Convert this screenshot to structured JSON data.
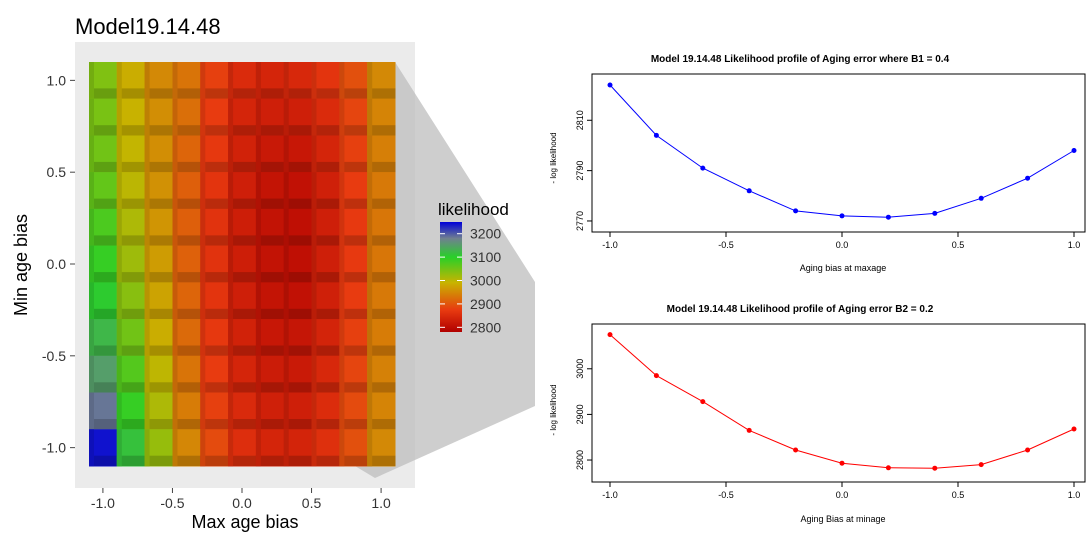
{
  "chart_data": [
    {
      "type": "heatmap",
      "title": "Model19.14.48",
      "xlabel": "Max age bias",
      "ylabel": "Min age bias",
      "x_ticks": [
        "-1.0",
        "-0.5",
        "0.0",
        "0.5",
        "1.0"
      ],
      "y_ticks": [
        "1.0",
        "0.5",
        "0.0",
        "-0.5",
        "-1.0"
      ],
      "x": [
        -1.0,
        -0.8,
        -0.6,
        -0.4,
        -0.2,
        0.0,
        0.2,
        0.4,
        0.6,
        0.8,
        1.0
      ],
      "y": [
        1.0,
        0.8,
        0.6,
        0.4,
        0.2,
        0.0,
        -0.2,
        -0.4,
        -0.6,
        -0.8,
        -1.0
      ],
      "xlim": [
        -1.1,
        1.1
      ],
      "ylim": [
        -1.1,
        1.1
      ],
      "z": [
        [
          3040,
          2985,
          2950,
          2930,
          2880,
          2850,
          2840,
          2845,
          2865,
          2895,
          2950
        ],
        [
          3045,
          2990,
          2955,
          2925,
          2875,
          2840,
          2830,
          2830,
          2850,
          2885,
          2945
        ],
        [
          3050,
          2995,
          2955,
          2915,
          2870,
          2835,
          2820,
          2818,
          2840,
          2880,
          2940
        ],
        [
          3060,
          3000,
          2958,
          2910,
          2865,
          2830,
          2812,
          2808,
          2832,
          2875,
          2935
        ],
        [
          3075,
          3010,
          2962,
          2910,
          2862,
          2828,
          2810,
          2805,
          2830,
          2872,
          2932
        ],
        [
          3090,
          3020,
          2968,
          2912,
          2862,
          2828,
          2810,
          2805,
          2830,
          2872,
          2932
        ],
        [
          3105,
          3035,
          2975,
          2915,
          2865,
          2830,
          2812,
          2808,
          2832,
          2875,
          2935
        ],
        [
          3125,
          3050,
          2985,
          2920,
          2870,
          2835,
          2818,
          2815,
          2838,
          2880,
          2938
        ],
        [
          3150,
          3070,
          2998,
          2930,
          2875,
          2840,
          2825,
          2822,
          2845,
          2885,
          2942
        ],
        [
          3185,
          3090,
          3010,
          2938,
          2880,
          2848,
          2832,
          2830,
          2852,
          2890,
          2945
        ],
        [
          3240,
          3115,
          3025,
          2948,
          2890,
          2855,
          2840,
          2838,
          2858,
          2895,
          2950
        ]
      ],
      "legend": {
        "title": "likelihood",
        "ticks": [
          3200,
          3100,
          3000,
          2900,
          2800
        ],
        "range": [
          2780,
          3250
        ],
        "colors": [
          "#b00000",
          "#e83a10",
          "#c8b400",
          "#28d028",
          "#708090",
          "#0000d8"
        ],
        "placement": "right"
      },
      "grid": true
    },
    {
      "type": "line",
      "title": "Model 19.14.48 Likelihood profile of Aging error where B1 = 0.4",
      "xlabel": "Aging bias at maxage",
      "ylabel": "- log likelihood",
      "x": [
        -1.0,
        -0.8,
        -0.6,
        -0.4,
        -0.2,
        0.0,
        0.2,
        0.4,
        0.6,
        0.8,
        1.0
      ],
      "y": [
        2824,
        2804,
        2791,
        2782,
        2774,
        2772,
        2771.5,
        2773,
        2779,
        2787,
        2798
      ],
      "xlim": [
        -1.0,
        1.0
      ],
      "ylim": [
        2768,
        2826
      ],
      "x_ticks": [
        -1.0,
        -0.5,
        0.0,
        0.5,
        1.0
      ],
      "x_tick_labels": [
        "-1.0",
        "-0.5",
        "0.0",
        "0.5",
        "1.0"
      ],
      "y_ticks": [
        2770,
        2790,
        2810
      ],
      "color": "#0000ff",
      "grid": false
    },
    {
      "type": "line",
      "title": "Model 19.14.48 Likelihood profile of Aging error B2 = 0.2",
      "xlabel": "Aging Bias at minage",
      "ylabel": "- log likelihood",
      "x": [
        -1.0,
        -0.8,
        -0.6,
        -0.4,
        -0.2,
        0.0,
        0.2,
        0.4,
        0.6,
        0.8,
        1.0
      ],
      "y": [
        3075,
        2985,
        2928,
        2865,
        2822,
        2793,
        2783,
        2782,
        2790,
        2822,
        2868
      ],
      "xlim": [
        -1.0,
        1.0
      ],
      "ylim": [
        2765,
        3085
      ],
      "x_ticks": [
        -1.0,
        -0.5,
        0.0,
        0.5,
        1.0
      ],
      "x_tick_labels": [
        "-1.0",
        "-0.5",
        "0.0",
        "0.5",
        "1.0"
      ],
      "y_ticks": [
        2800,
        2900,
        3000
      ],
      "color": "#ff0000",
      "grid": false
    }
  ]
}
